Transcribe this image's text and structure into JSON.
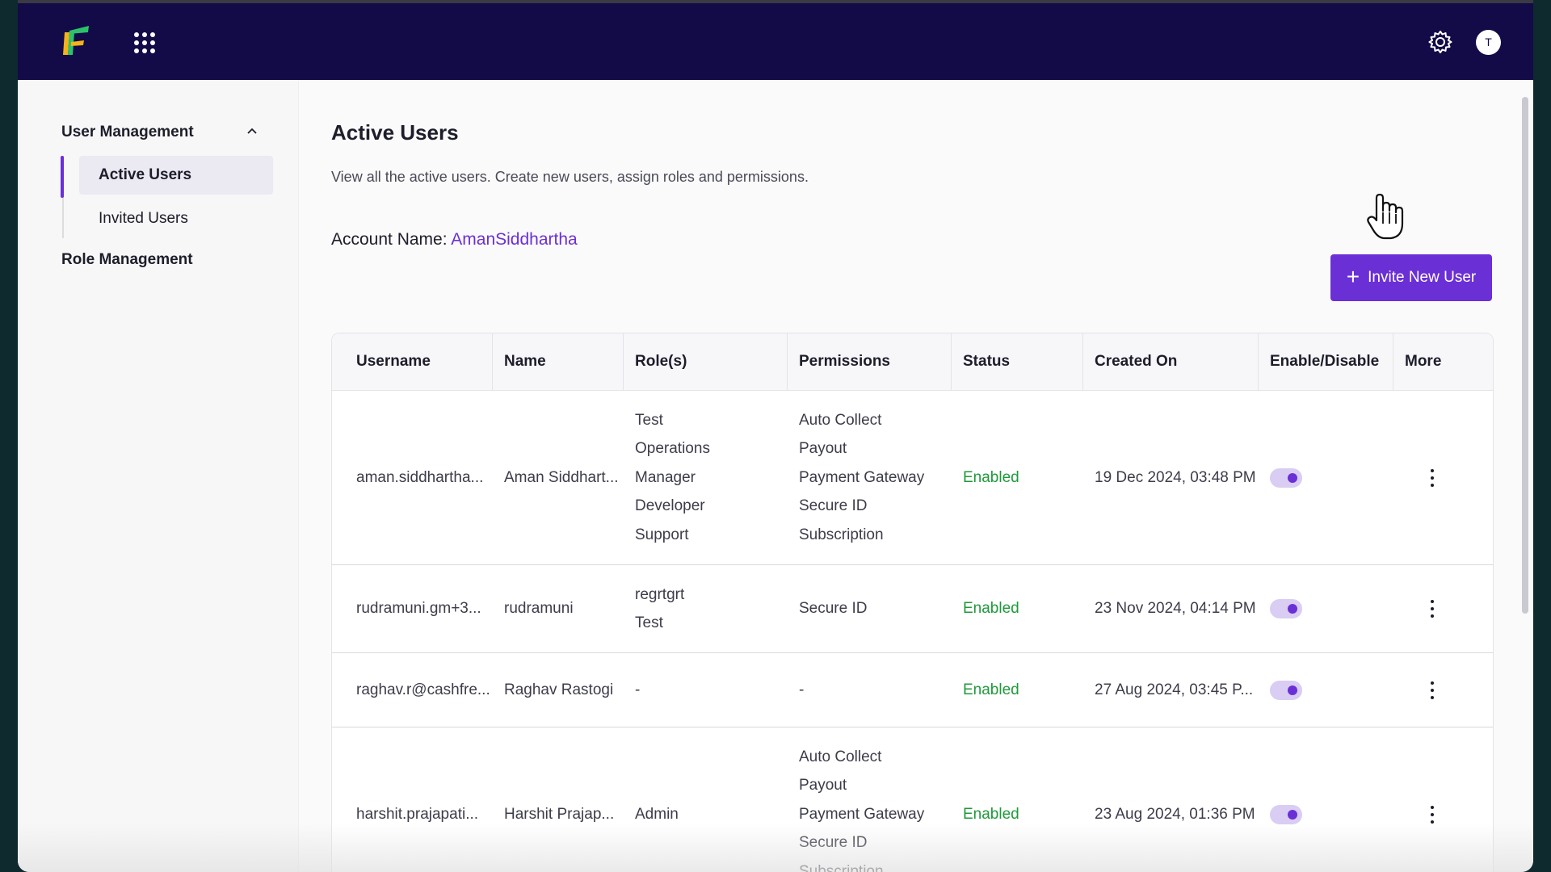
{
  "topbar": {
    "logo_icon": "cashfree-logo-icon",
    "apps_icon": "app-grid-icon",
    "settings_icon": "gear-icon",
    "avatar_initial": "T"
  },
  "sidebar": {
    "group_label": "User Management",
    "items": [
      {
        "label": "Active Users",
        "active": true
      },
      {
        "label": "Invited Users",
        "active": false
      }
    ],
    "role_management": "Role Management"
  },
  "main": {
    "title": "Active Users",
    "description": "View all the active users. Create new users, assign roles and permissions.",
    "account_label": "Account Name:",
    "account_value": "AmanSiddhartha",
    "invite_button": "Invite New User"
  },
  "table": {
    "headers": [
      "Username",
      "Name",
      "Role(s)",
      "Permissions",
      "Status",
      "Created On",
      "Enable/Disable",
      "More"
    ],
    "rows": [
      {
        "username": "aman.siddhartha...",
        "name": "Aman Siddhart...",
        "roles": [
          "Test",
          "Operations",
          "Manager",
          "Developer",
          "Support"
        ],
        "permissions": [
          "Auto Collect",
          "Payout",
          "Payment Gateway",
          "Secure ID",
          "Subscription"
        ],
        "status": "Enabled",
        "created": "19 Dec 2024, 03:48 PM",
        "enabled": true
      },
      {
        "username": "rudramuni.gm+3...",
        "name": "rudramuni",
        "roles": [
          "regrtgrt",
          "Test"
        ],
        "permissions": [
          "Secure ID"
        ],
        "status": "Enabled",
        "created": "23 Nov 2024, 04:14 PM",
        "enabled": true
      },
      {
        "username": "raghav.r@cashfre...",
        "name": "Raghav Rastogi",
        "roles": [
          "-"
        ],
        "permissions": [
          "-"
        ],
        "status": "Enabled",
        "created": "27 Aug 2024, 03:45 P...",
        "enabled": true
      },
      {
        "username": "harshit.prajapati...",
        "name": "Harshit Prajap...",
        "roles": [
          "Admin"
        ],
        "permissions": [
          "Auto Collect",
          "Payout",
          "Payment Gateway",
          "Secure ID",
          "Subscription"
        ],
        "status": "Enabled",
        "created": "23 Aug 2024, 01:36 PM",
        "enabled": true
      }
    ]
  },
  "colors": {
    "topbar": "#130b48",
    "accent": "#6b2fd6",
    "enabled": "#1f9a3a"
  }
}
